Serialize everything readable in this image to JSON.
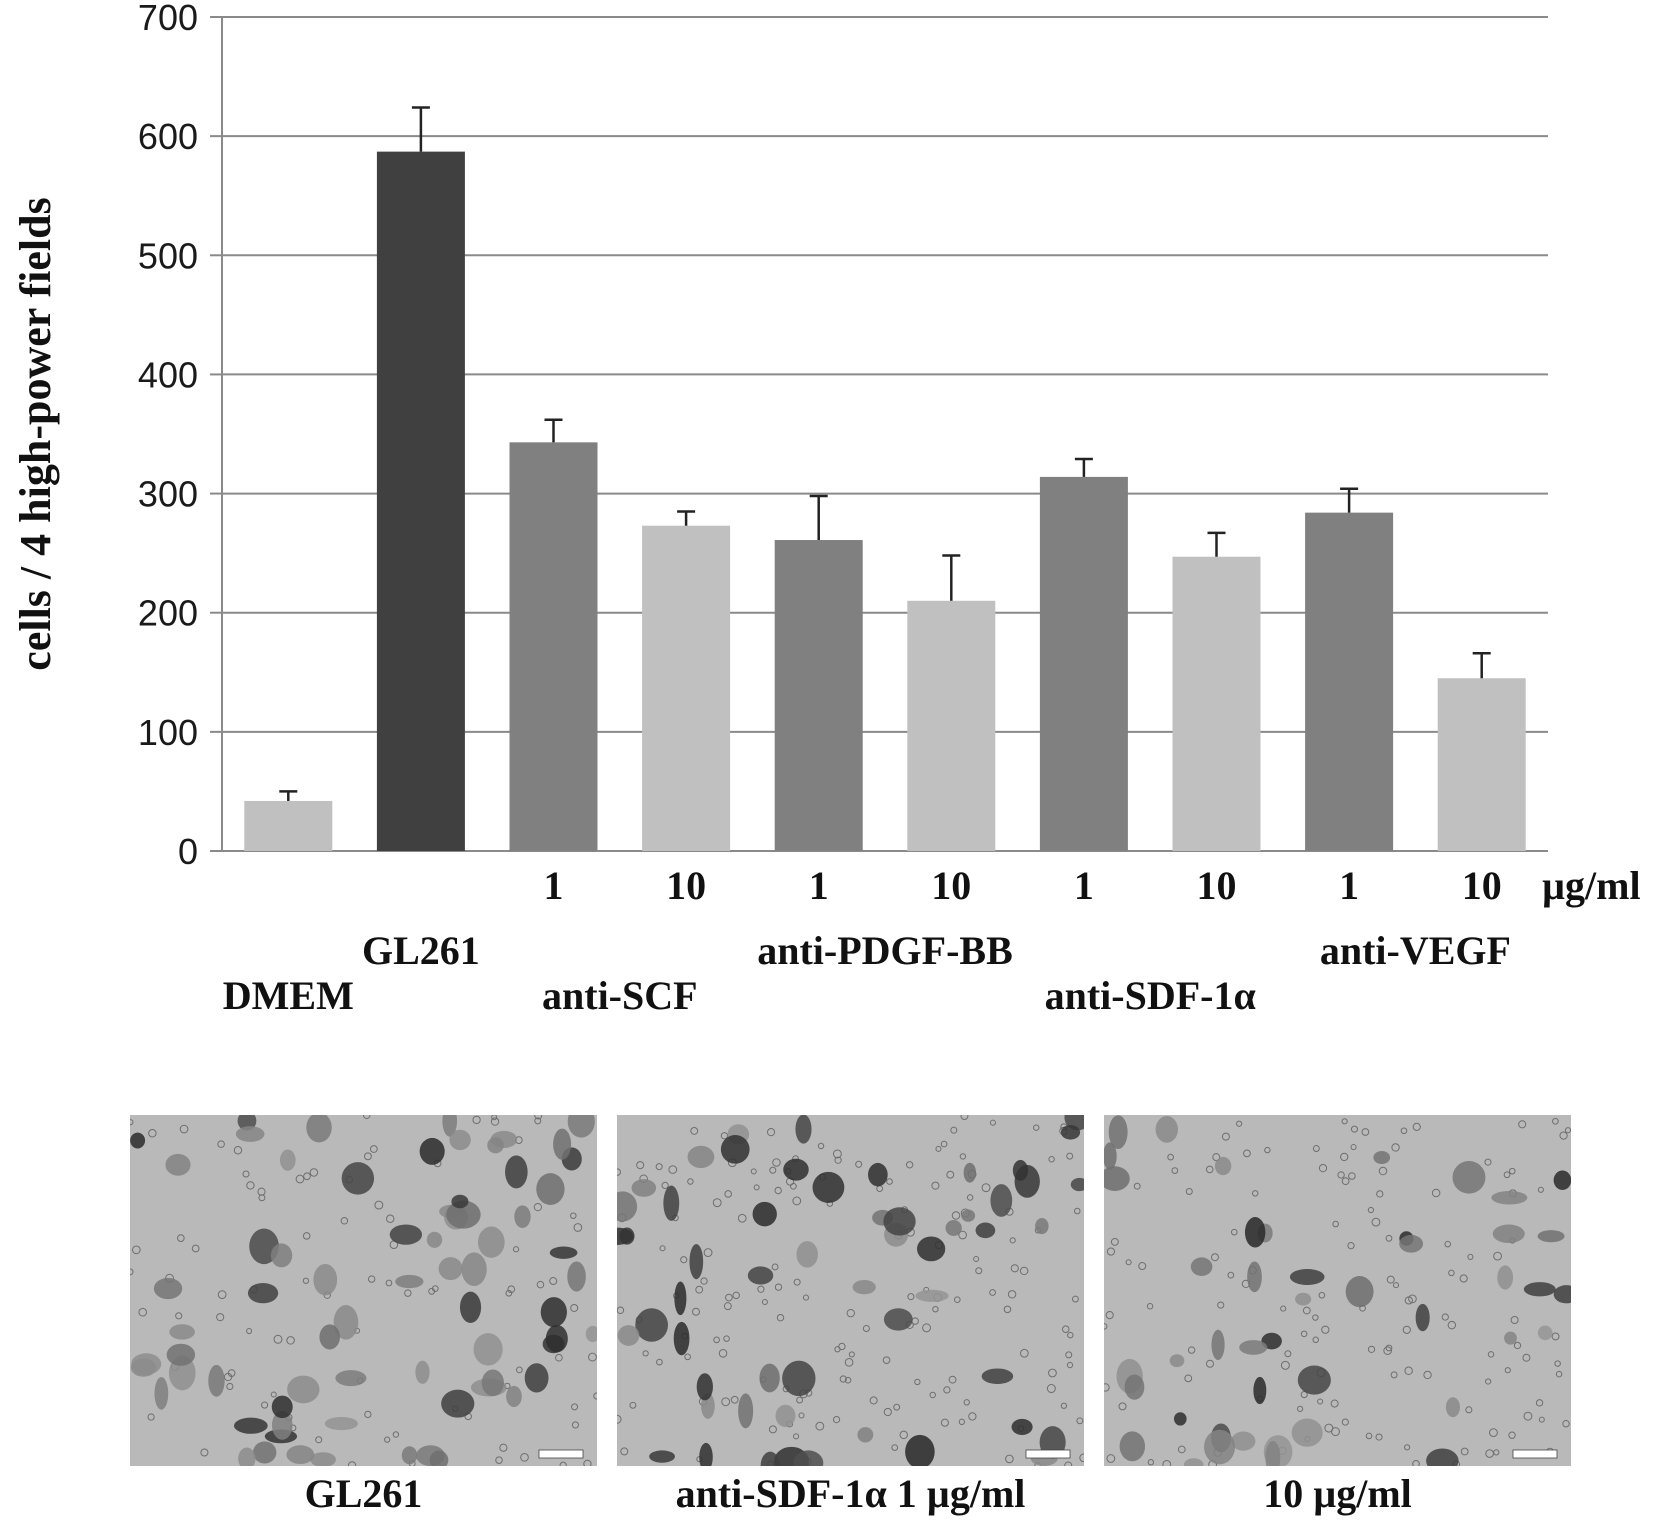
{
  "chart_data": {
    "type": "bar",
    "ylabel": "cells / 4 high-power fields",
    "ylim": [
      0,
      700
    ],
    "yticks": [
      "0",
      "100",
      "200",
      "300",
      "400",
      "500",
      "600",
      "700"
    ],
    "grid": true,
    "unit_label": "µg/ml",
    "bars": [
      {
        "dose": "",
        "value": 42,
        "error": 8,
        "color": "#c0c0c0"
      },
      {
        "dose": "",
        "value": 587,
        "error": 37,
        "color": "#404040"
      },
      {
        "dose": "1",
        "value": 343,
        "error": 19,
        "color": "#808080"
      },
      {
        "dose": "10",
        "value": 273,
        "error": 12,
        "color": "#c0c0c0"
      },
      {
        "dose": "1",
        "value": 261,
        "error": 37,
        "color": "#808080"
      },
      {
        "dose": "10",
        "value": 210,
        "error": 38,
        "color": "#c0c0c0"
      },
      {
        "dose": "1",
        "value": 314,
        "error": 15,
        "color": "#808080"
      },
      {
        "dose": "10",
        "value": 247,
        "error": 20,
        "color": "#c0c0c0"
      },
      {
        "dose": "1",
        "value": 284,
        "error": 20,
        "color": "#808080"
      },
      {
        "dose": "10",
        "value": 145,
        "error": 21,
        "color": "#c0c0c0"
      }
    ],
    "group_labels": [
      "DMEM",
      "GL261",
      "anti-SCF",
      "anti-PDGF-BB",
      "anti-SDF-1α",
      "anti-VEGF"
    ]
  },
  "micrographs": [
    {
      "caption": "GL261"
    },
    {
      "caption": "anti-SDF-1α  1 µg/ml"
    },
    {
      "caption": "10 µg/ml"
    }
  ]
}
